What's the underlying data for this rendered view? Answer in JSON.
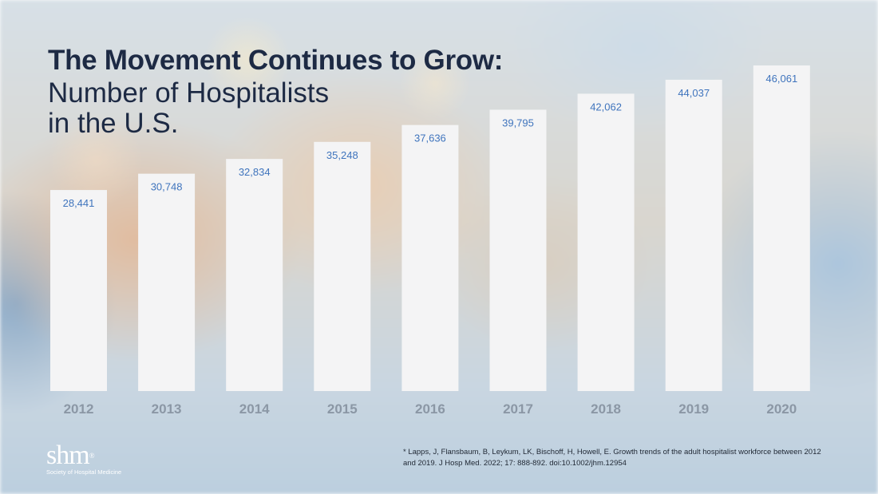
{
  "title": {
    "line1": "The Movement Continues to Grow:",
    "line2": "Number of Hospitalists",
    "line3": "in the U.S."
  },
  "chart_data": {
    "type": "bar",
    "categories": [
      "2012",
      "2013",
      "2014",
      "2015",
      "2016",
      "2017",
      "2018",
      "2019",
      "2020"
    ],
    "values": [
      28441,
      30748,
      32834,
      35248,
      37636,
      39795,
      42062,
      44037,
      46061
    ],
    "value_labels": [
      "28,441",
      "30,748",
      "32,834",
      "35,248",
      "37,636",
      "39,795",
      "42,062",
      "44,037",
      "46,061"
    ],
    "title": "The Movement Continues to Grow: Number of Hospitalists in the U.S.",
    "xlabel": "",
    "ylabel": "",
    "grid": false,
    "legend": "none",
    "bar_color": "#f4f4f5",
    "label_color": "#3f74bd",
    "tick_color": "#8b97a5"
  },
  "logo": {
    "mark": "shm",
    "subtitle": "Society of Hospital Medicine"
  },
  "citation": "* Lapps, J, Flansbaum, B, Leykum, LK, Bischoff, H, Howell, E. Growth trends of the adult hospitalist workforce between 2012 and 2019. J Hosp Med. 2022; 17: 888-892. doi:10.1002/jhm.12954"
}
